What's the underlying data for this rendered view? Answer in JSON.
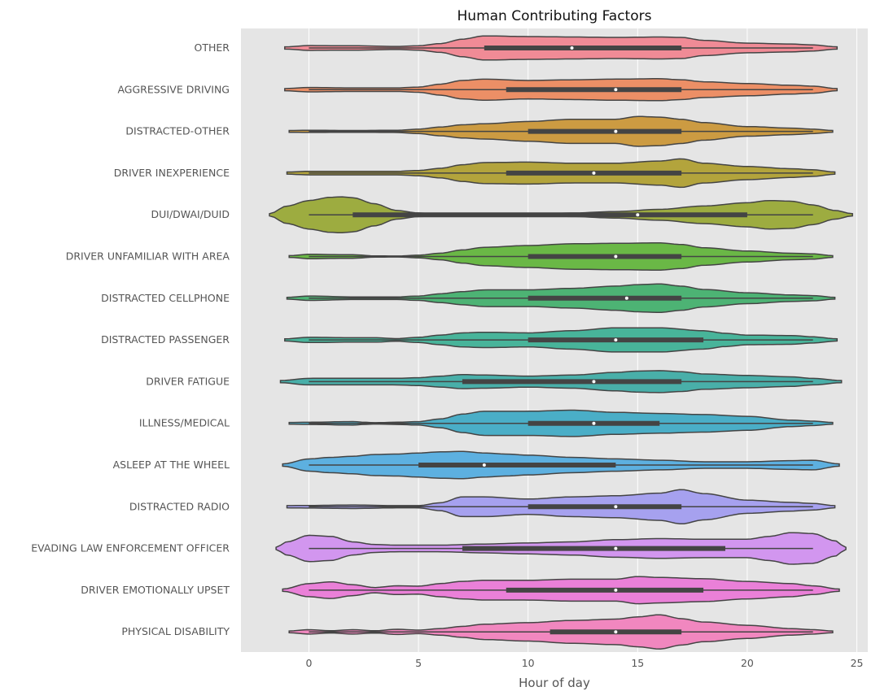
{
  "chart_data": {
    "type": "violin",
    "title": "Human Contributing Factors",
    "xlabel": "Hour of day",
    "ylabel": "",
    "xlim": [
      -3.1,
      25.5
    ],
    "x_ticks": [
      0,
      5,
      10,
      15,
      20,
      25
    ],
    "grid": true,
    "legend": "none",
    "colors": {
      "plot_background": "#e5e5e5",
      "grid": "#ffffff",
      "outline": "#444444",
      "text": "#555555"
    },
    "categories": [
      "OTHER",
      "AGGRESSIVE DRIVING",
      "DISTRACTED-OTHER",
      "DRIVER INEXPERIENCE",
      "DUI/DWAI/DUID",
      "DRIVER UNFAMILIAR WITH AREA",
      "DISTRACTED CELLPHONE",
      "DISTRACTED PASSENGER",
      "DRIVER FATIGUE",
      "ILLNESS/MEDICAL",
      "ASLEEP AT THE WHEEL",
      "DISTRACTED RADIO",
      "EVADING LAW ENFORCEMENT OFFICER",
      "DRIVER EMOTIONALLY UPSET",
      "PHYSICAL DISABILITY"
    ],
    "series": [
      {
        "color": "#f08b96",
        "min": 0,
        "q1": 8,
        "median": 12,
        "q3": 17,
        "max": 23,
        "x_extent": [
          -1.1,
          24.1
        ],
        "density_x": [
          -1.1,
          0,
          2,
          4,
          5,
          6,
          7,
          8,
          10,
          12,
          14,
          16,
          17,
          18,
          20,
          22,
          23,
          24.1
        ],
        "density_w": [
          0.05,
          0.11,
          0.1,
          0.07,
          0.1,
          0.2,
          0.4,
          0.55,
          0.52,
          0.5,
          0.48,
          0.5,
          0.48,
          0.35,
          0.22,
          0.18,
          0.14,
          0.05
        ]
      },
      {
        "color": "#ec8f66",
        "min": 0,
        "q1": 9,
        "median": 14,
        "q3": 17,
        "max": 23,
        "x_extent": [
          -1.1,
          24.1
        ],
        "density_x": [
          -1.1,
          0,
          2,
          4,
          5,
          6,
          7,
          8,
          10,
          12,
          14,
          16,
          17,
          18,
          20,
          22,
          23,
          24.1
        ],
        "density_w": [
          0.05,
          0.1,
          0.08,
          0.08,
          0.12,
          0.25,
          0.42,
          0.48,
          0.42,
          0.45,
          0.48,
          0.5,
          0.45,
          0.36,
          0.28,
          0.2,
          0.16,
          0.05
        ]
      },
      {
        "color": "#cc9b42",
        "min": 0,
        "q1": 10,
        "median": 14,
        "q3": 17,
        "max": 23,
        "x_extent": [
          -0.9,
          23.9
        ],
        "density_x": [
          -0.9,
          0,
          2,
          4,
          5,
          6,
          7,
          8,
          10,
          12,
          14,
          15,
          16,
          17,
          18,
          20,
          22,
          23,
          23.9
        ],
        "density_w": [
          0.04,
          0.05,
          0.04,
          0.05,
          0.1,
          0.2,
          0.3,
          0.35,
          0.45,
          0.55,
          0.55,
          0.68,
          0.65,
          0.55,
          0.4,
          0.22,
          0.15,
          0.1,
          0.04
        ]
      },
      {
        "color": "#b3a43c",
        "min": 0,
        "q1": 9,
        "median": 13,
        "q3": 17,
        "max": 23,
        "x_extent": [
          -1.0,
          24.0
        ],
        "density_x": [
          -1.0,
          0,
          2,
          4,
          5,
          6,
          7,
          8,
          10,
          12,
          14,
          16,
          17,
          18,
          20,
          22,
          23,
          24.0
        ],
        "density_w": [
          0.05,
          0.08,
          0.08,
          0.08,
          0.12,
          0.22,
          0.38,
          0.48,
          0.5,
          0.45,
          0.45,
          0.55,
          0.65,
          0.45,
          0.3,
          0.2,
          0.15,
          0.05
        ]
      },
      {
        "color": "#9dac40",
        "min": 0,
        "q1": 2,
        "median": 15,
        "q3": 20,
        "max": 23,
        "x_extent": [
          -1.8,
          24.8
        ],
        "density_x": [
          -1.8,
          -1,
          0,
          1,
          1.5,
          2,
          3,
          4,
          5,
          6,
          8,
          10,
          12,
          14,
          16,
          18,
          20,
          21,
          22,
          23,
          24,
          24.8
        ],
        "density_w": [
          0.05,
          0.4,
          0.65,
          0.8,
          0.82,
          0.78,
          0.5,
          0.2,
          0.08,
          0.06,
          0.05,
          0.05,
          0.08,
          0.15,
          0.25,
          0.4,
          0.55,
          0.65,
          0.62,
          0.45,
          0.2,
          0.05
        ]
      },
      {
        "color": "#6ab846",
        "min": 0,
        "q1": 10,
        "median": 14,
        "q3": 17,
        "max": 23,
        "x_extent": [
          -0.9,
          23.9
        ],
        "density_x": [
          -0.9,
          0,
          2,
          3,
          4,
          5,
          6,
          7,
          8,
          10,
          12,
          14,
          16,
          17,
          18,
          20,
          22,
          23,
          23.9
        ],
        "density_w": [
          0.04,
          0.1,
          0.08,
          0.03,
          0.02,
          0.06,
          0.15,
          0.3,
          0.42,
          0.5,
          0.58,
          0.6,
          0.62,
          0.55,
          0.4,
          0.25,
          0.15,
          0.12,
          0.04
        ]
      },
      {
        "color": "#4db374",
        "min": 0,
        "q1": 10,
        "median": 14.5,
        "q3": 17,
        "max": 23,
        "x_extent": [
          -1.0,
          24.0
        ],
        "density_x": [
          -1.0,
          0,
          2,
          4,
          5,
          6,
          7,
          8,
          10,
          12,
          14,
          15,
          16,
          17,
          18,
          20,
          22,
          23,
          24.0
        ],
        "density_w": [
          0.04,
          0.1,
          0.06,
          0.06,
          0.1,
          0.2,
          0.3,
          0.38,
          0.38,
          0.45,
          0.55,
          0.62,
          0.65,
          0.55,
          0.4,
          0.25,
          0.15,
          0.12,
          0.04
        ]
      },
      {
        "color": "#48b49a",
        "min": 0,
        "q1": 10,
        "median": 14,
        "q3": 18,
        "max": 23,
        "x_extent": [
          -1.1,
          24.1
        ],
        "density_x": [
          -1.1,
          0,
          2,
          3,
          4,
          5,
          6,
          7,
          8,
          10,
          12,
          14,
          16,
          18,
          19,
          20,
          22,
          23,
          24.1
        ],
        "density_w": [
          0.05,
          0.12,
          0.1,
          0.1,
          0.06,
          0.12,
          0.22,
          0.32,
          0.35,
          0.32,
          0.42,
          0.55,
          0.55,
          0.42,
          0.3,
          0.22,
          0.2,
          0.14,
          0.05
        ]
      },
      {
        "color": "#49afa9",
        "min": 0,
        "q1": 7,
        "median": 13,
        "q3": 17,
        "max": 23,
        "x_extent": [
          -1.3,
          24.3
        ],
        "density_x": [
          -1.3,
          0,
          2,
          4,
          5,
          6,
          7,
          8,
          10,
          12,
          14,
          15,
          16,
          17,
          18,
          20,
          22,
          23,
          24.3
        ],
        "density_w": [
          0.05,
          0.15,
          0.15,
          0.15,
          0.18,
          0.25,
          0.32,
          0.3,
          0.25,
          0.3,
          0.42,
          0.48,
          0.5,
          0.45,
          0.35,
          0.28,
          0.22,
          0.15,
          0.05
        ]
      },
      {
        "color": "#4aaec7",
        "min": 0,
        "q1": 10,
        "median": 13,
        "q3": 16,
        "max": 23,
        "x_extent": [
          -0.9,
          23.9
        ],
        "density_x": [
          -0.9,
          0,
          2,
          2.5,
          3,
          4,
          5,
          6,
          7,
          8,
          10,
          12,
          14,
          16,
          18,
          20,
          22,
          23,
          23.9
        ],
        "density_w": [
          0.04,
          0.05,
          0.08,
          0.05,
          0.03,
          0.05,
          0.08,
          0.2,
          0.42,
          0.55,
          0.55,
          0.6,
          0.5,
          0.45,
          0.4,
          0.32,
          0.15,
          0.1,
          0.04
        ]
      },
      {
        "color": "#5db0e0",
        "min": 0,
        "q1": 5,
        "median": 8,
        "q3": 14,
        "max": 23,
        "x_extent": [
          -1.2,
          24.2
        ],
        "density_x": [
          -1.2,
          0,
          1,
          2,
          3,
          4,
          5,
          6,
          7,
          8,
          9,
          10,
          12,
          14,
          16,
          18,
          20,
          22,
          23,
          24.2
        ],
        "density_w": [
          0.05,
          0.28,
          0.35,
          0.4,
          0.48,
          0.5,
          0.55,
          0.6,
          0.62,
          0.55,
          0.5,
          0.45,
          0.35,
          0.28,
          0.22,
          0.15,
          0.15,
          0.2,
          0.22,
          0.05
        ]
      },
      {
        "color": "#a6a1ef",
        "min": 0,
        "q1": 10,
        "median": 14,
        "q3": 17,
        "max": 23,
        "x_extent": [
          -1.0,
          24.0
        ],
        "density_x": [
          -1.0,
          0,
          2,
          4,
          5,
          6,
          7,
          8,
          10,
          12,
          14,
          16,
          17,
          18,
          20,
          22,
          23,
          24.0
        ],
        "density_w": [
          0.05,
          0.06,
          0.08,
          0.05,
          0.05,
          0.18,
          0.45,
          0.45,
          0.35,
          0.45,
          0.5,
          0.62,
          0.78,
          0.6,
          0.3,
          0.2,
          0.15,
          0.05
        ]
      },
      {
        "color": "#d296ef",
        "min": 0,
        "q1": 7,
        "median": 14,
        "q3": 19,
        "max": 23,
        "x_extent": [
          -1.5,
          24.5
        ],
        "density_x": [
          -1.5,
          -1,
          0,
          1,
          2,
          3,
          4,
          6,
          8,
          10,
          12,
          14,
          16,
          18,
          20,
          21,
          22,
          23,
          24,
          24.5
        ],
        "density_w": [
          0.05,
          0.3,
          0.6,
          0.55,
          0.3,
          0.18,
          0.15,
          0.15,
          0.2,
          0.25,
          0.3,
          0.4,
          0.45,
          0.42,
          0.42,
          0.55,
          0.72,
          0.68,
          0.35,
          0.05
        ]
      },
      {
        "color": "#ea80d8",
        "min": 0,
        "q1": 9,
        "median": 14,
        "q3": 18,
        "max": 23,
        "x_extent": [
          -1.2,
          24.2
        ],
        "density_x": [
          -1.2,
          0,
          1,
          2,
          3,
          4,
          5,
          6,
          7,
          8,
          10,
          12,
          14,
          15,
          16,
          18,
          20,
          22,
          23,
          24.2
        ],
        "density_w": [
          0.05,
          0.3,
          0.38,
          0.25,
          0.12,
          0.2,
          0.18,
          0.3,
          0.4,
          0.45,
          0.45,
          0.5,
          0.5,
          0.62,
          0.58,
          0.52,
          0.4,
          0.3,
          0.2,
          0.05
        ]
      },
      {
        "color": "#f187bf",
        "min": 0,
        "q1": 11,
        "median": 14,
        "q3": 17,
        "max": 23,
        "x_extent": [
          -0.9,
          23.9
        ],
        "density_x": [
          -0.9,
          0,
          1,
          2,
          3,
          4,
          5,
          6,
          7,
          8,
          10,
          12,
          14,
          15,
          16,
          17,
          18,
          20,
          22,
          23,
          23.9
        ],
        "density_w": [
          0.04,
          0.1,
          0.05,
          0.1,
          0.05,
          0.12,
          0.08,
          0.15,
          0.25,
          0.35,
          0.42,
          0.52,
          0.58,
          0.68,
          0.78,
          0.6,
          0.45,
          0.3,
          0.15,
          0.1,
          0.04
        ]
      }
    ]
  }
}
